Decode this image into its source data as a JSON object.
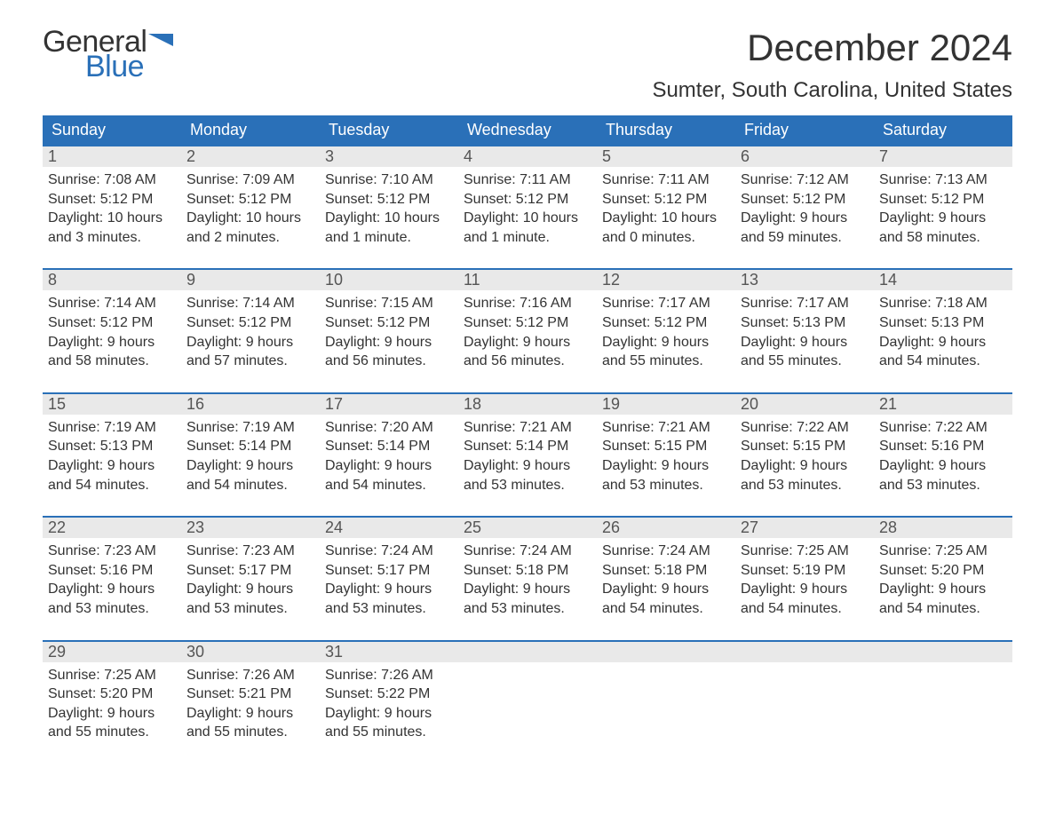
{
  "logo": {
    "general": "General",
    "blue": "Blue"
  },
  "title": "December 2024",
  "location": "Sumter, South Carolina, United States",
  "colors": {
    "header_bg": "#2a70b8",
    "header_text": "#ffffff",
    "daynum_bg": "#e9e9e9",
    "body_text": "#333333",
    "rule": "#2a70b8"
  },
  "dow": [
    "Sunday",
    "Monday",
    "Tuesday",
    "Wednesday",
    "Thursday",
    "Friday",
    "Saturday"
  ],
  "weeks": [
    [
      {
        "n": "1",
        "sr": "Sunrise: 7:08 AM",
        "ss": "Sunset: 5:12 PM",
        "d1": "Daylight: 10 hours",
        "d2": "and 3 minutes."
      },
      {
        "n": "2",
        "sr": "Sunrise: 7:09 AM",
        "ss": "Sunset: 5:12 PM",
        "d1": "Daylight: 10 hours",
        "d2": "and 2 minutes."
      },
      {
        "n": "3",
        "sr": "Sunrise: 7:10 AM",
        "ss": "Sunset: 5:12 PM",
        "d1": "Daylight: 10 hours",
        "d2": "and 1 minute."
      },
      {
        "n": "4",
        "sr": "Sunrise: 7:11 AM",
        "ss": "Sunset: 5:12 PM",
        "d1": "Daylight: 10 hours",
        "d2": "and 1 minute."
      },
      {
        "n": "5",
        "sr": "Sunrise: 7:11 AM",
        "ss": "Sunset: 5:12 PM",
        "d1": "Daylight: 10 hours",
        "d2": "and 0 minutes."
      },
      {
        "n": "6",
        "sr": "Sunrise: 7:12 AM",
        "ss": "Sunset: 5:12 PM",
        "d1": "Daylight: 9 hours",
        "d2": "and 59 minutes."
      },
      {
        "n": "7",
        "sr": "Sunrise: 7:13 AM",
        "ss": "Sunset: 5:12 PM",
        "d1": "Daylight: 9 hours",
        "d2": "and 58 minutes."
      }
    ],
    [
      {
        "n": "8",
        "sr": "Sunrise: 7:14 AM",
        "ss": "Sunset: 5:12 PM",
        "d1": "Daylight: 9 hours",
        "d2": "and 58 minutes."
      },
      {
        "n": "9",
        "sr": "Sunrise: 7:14 AM",
        "ss": "Sunset: 5:12 PM",
        "d1": "Daylight: 9 hours",
        "d2": "and 57 minutes."
      },
      {
        "n": "10",
        "sr": "Sunrise: 7:15 AM",
        "ss": "Sunset: 5:12 PM",
        "d1": "Daylight: 9 hours",
        "d2": "and 56 minutes."
      },
      {
        "n": "11",
        "sr": "Sunrise: 7:16 AM",
        "ss": "Sunset: 5:12 PM",
        "d1": "Daylight: 9 hours",
        "d2": "and 56 minutes."
      },
      {
        "n": "12",
        "sr": "Sunrise: 7:17 AM",
        "ss": "Sunset: 5:12 PM",
        "d1": "Daylight: 9 hours",
        "d2": "and 55 minutes."
      },
      {
        "n": "13",
        "sr": "Sunrise: 7:17 AM",
        "ss": "Sunset: 5:13 PM",
        "d1": "Daylight: 9 hours",
        "d2": "and 55 minutes."
      },
      {
        "n": "14",
        "sr": "Sunrise: 7:18 AM",
        "ss": "Sunset: 5:13 PM",
        "d1": "Daylight: 9 hours",
        "d2": "and 54 minutes."
      }
    ],
    [
      {
        "n": "15",
        "sr": "Sunrise: 7:19 AM",
        "ss": "Sunset: 5:13 PM",
        "d1": "Daylight: 9 hours",
        "d2": "and 54 minutes."
      },
      {
        "n": "16",
        "sr": "Sunrise: 7:19 AM",
        "ss": "Sunset: 5:14 PM",
        "d1": "Daylight: 9 hours",
        "d2": "and 54 minutes."
      },
      {
        "n": "17",
        "sr": "Sunrise: 7:20 AM",
        "ss": "Sunset: 5:14 PM",
        "d1": "Daylight: 9 hours",
        "d2": "and 54 minutes."
      },
      {
        "n": "18",
        "sr": "Sunrise: 7:21 AM",
        "ss": "Sunset: 5:14 PM",
        "d1": "Daylight: 9 hours",
        "d2": "and 53 minutes."
      },
      {
        "n": "19",
        "sr": "Sunrise: 7:21 AM",
        "ss": "Sunset: 5:15 PM",
        "d1": "Daylight: 9 hours",
        "d2": "and 53 minutes."
      },
      {
        "n": "20",
        "sr": "Sunrise: 7:22 AM",
        "ss": "Sunset: 5:15 PM",
        "d1": "Daylight: 9 hours",
        "d2": "and 53 minutes."
      },
      {
        "n": "21",
        "sr": "Sunrise: 7:22 AM",
        "ss": "Sunset: 5:16 PM",
        "d1": "Daylight: 9 hours",
        "d2": "and 53 minutes."
      }
    ],
    [
      {
        "n": "22",
        "sr": "Sunrise: 7:23 AM",
        "ss": "Sunset: 5:16 PM",
        "d1": "Daylight: 9 hours",
        "d2": "and 53 minutes."
      },
      {
        "n": "23",
        "sr": "Sunrise: 7:23 AM",
        "ss": "Sunset: 5:17 PM",
        "d1": "Daylight: 9 hours",
        "d2": "and 53 minutes."
      },
      {
        "n": "24",
        "sr": "Sunrise: 7:24 AM",
        "ss": "Sunset: 5:17 PM",
        "d1": "Daylight: 9 hours",
        "d2": "and 53 minutes."
      },
      {
        "n": "25",
        "sr": "Sunrise: 7:24 AM",
        "ss": "Sunset: 5:18 PM",
        "d1": "Daylight: 9 hours",
        "d2": "and 53 minutes."
      },
      {
        "n": "26",
        "sr": "Sunrise: 7:24 AM",
        "ss": "Sunset: 5:18 PM",
        "d1": "Daylight: 9 hours",
        "d2": "and 54 minutes."
      },
      {
        "n": "27",
        "sr": "Sunrise: 7:25 AM",
        "ss": "Sunset: 5:19 PM",
        "d1": "Daylight: 9 hours",
        "d2": "and 54 minutes."
      },
      {
        "n": "28",
        "sr": "Sunrise: 7:25 AM",
        "ss": "Sunset: 5:20 PM",
        "d1": "Daylight: 9 hours",
        "d2": "and 54 minutes."
      }
    ],
    [
      {
        "n": "29",
        "sr": "Sunrise: 7:25 AM",
        "ss": "Sunset: 5:20 PM",
        "d1": "Daylight: 9 hours",
        "d2": "and 55 minutes."
      },
      {
        "n": "30",
        "sr": "Sunrise: 7:26 AM",
        "ss": "Sunset: 5:21 PM",
        "d1": "Daylight: 9 hours",
        "d2": "and 55 minutes."
      },
      {
        "n": "31",
        "sr": "Sunrise: 7:26 AM",
        "ss": "Sunset: 5:22 PM",
        "d1": "Daylight: 9 hours",
        "d2": "and 55 minutes."
      },
      null,
      null,
      null,
      null
    ]
  ]
}
